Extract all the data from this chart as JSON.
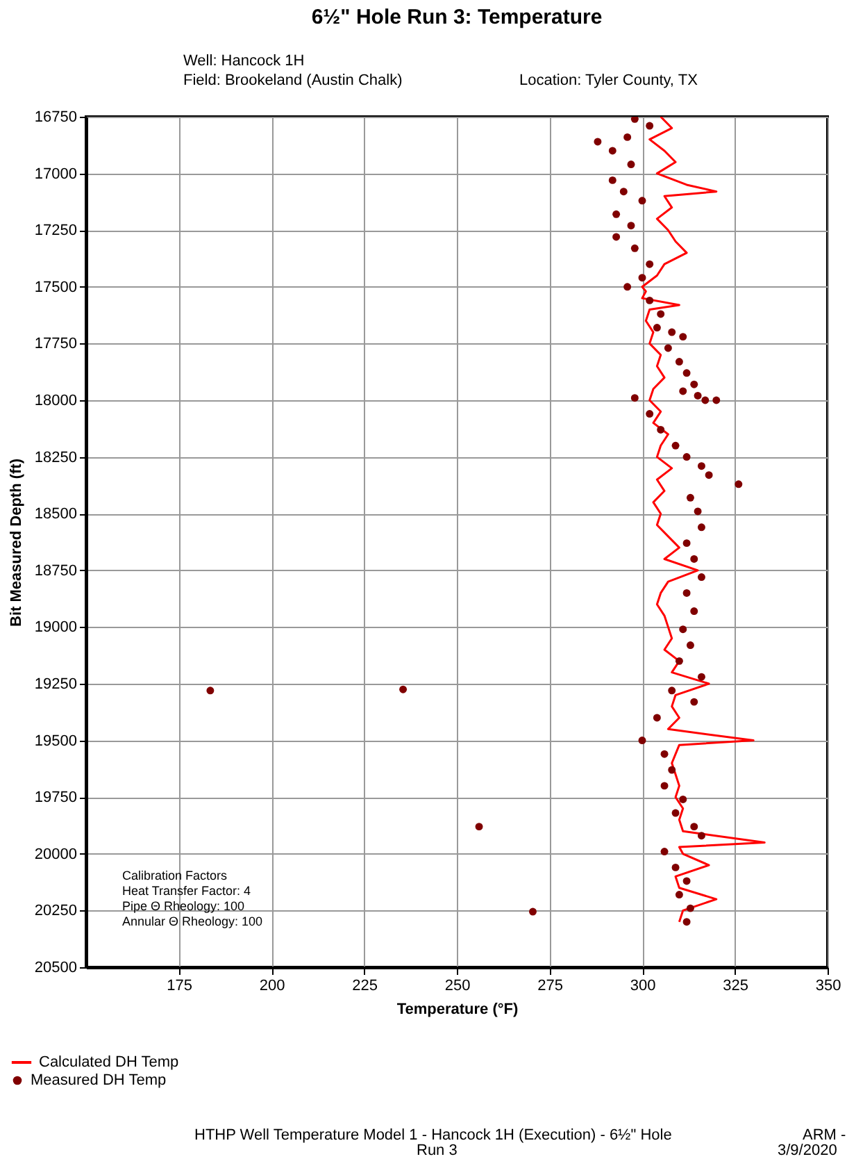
{
  "chart_data": {
    "type": "line",
    "title": "6½\" Hole Run 3: Temperature",
    "xlabel": "Temperature (°F)",
    "ylabel": "Bit Measured Depth (ft)",
    "xlim": [
      150,
      350
    ],
    "xticks": [
      175,
      200,
      225,
      250,
      275,
      300,
      325,
      350
    ],
    "ylim": [
      20500,
      16750
    ],
    "yticks": [
      16750,
      17000,
      17250,
      17500,
      17750,
      18000,
      18250,
      18500,
      18750,
      19000,
      19250,
      19500,
      19750,
      20000,
      20250,
      20500
    ],
    "grid": true,
    "legend": "bottom left",
    "annotations": [
      "Well:   Hancock 1H",
      "Field:  Brookeland (Austin Chalk)",
      "Location:   Tyler County, TX",
      "Calibration Factors",
      "Heat Transfer Factor: 4",
      "Pipe Θ Rheology: 100",
      "Annular Θ Rheology: 100",
      "HTHP Well Temperature Model 1 - Hancock 1H (Execution) - 6½\" Hole",
      "Run 3",
      "ARM -",
      "3/9/2020"
    ],
    "series": [
      {
        "name": "Calculated DH Temp",
        "color": "#ff0000",
        "x": [
          305,
          308,
          302,
          306,
          309,
          304,
          312,
          320,
          306,
          308,
          304,
          307,
          309,
          312,
          306,
          304,
          300,
          301,
          300,
          310,
          302,
          301,
          303,
          302,
          305,
          304,
          306,
          303,
          302,
          305,
          303,
          307,
          305,
          304,
          308,
          304,
          306,
          303,
          305,
          304,
          307,
          310,
          306,
          315,
          307,
          305,
          304,
          306,
          307,
          308,
          306,
          310,
          308,
          318,
          309,
          308,
          310,
          307,
          330,
          310,
          308,
          309,
          310,
          309,
          311,
          310,
          311,
          333,
          310,
          311,
          318,
          309,
          310,
          320,
          311,
          310
        ],
        "values": [
          16750,
          16800,
          16850,
          16900,
          16950,
          17000,
          17050,
          17080,
          17100,
          17150,
          17200,
          17250,
          17300,
          17350,
          17400,
          17450,
          17500,
          17520,
          17550,
          17580,
          17600,
          17650,
          17700,
          17750,
          17800,
          17850,
          17900,
          17950,
          18000,
          18050,
          18100,
          18150,
          18200,
          18250,
          18300,
          18350,
          18400,
          18450,
          18500,
          18550,
          18600,
          18650,
          18700,
          18750,
          18800,
          18850,
          18900,
          18950,
          19000,
          19050,
          19100,
          19150,
          19200,
          19250,
          19300,
          19350,
          19400,
          19450,
          19500,
          19520,
          19600,
          19650,
          19700,
          19750,
          19800,
          19850,
          19900,
          19950,
          19970,
          20000,
          20050,
          20100,
          20150,
          20200,
          20250,
          20300
        ]
      },
      {
        "name": "Measured DH Temp",
        "type": "scatter",
        "marker": "circle",
        "color": "#800000",
        "x": [
          298,
          302,
          296,
          288,
          292,
          297,
          292,
          295,
          300,
          293,
          297,
          293,
          298,
          302,
          300,
          296,
          302,
          305,
          304,
          308,
          311,
          307,
          310,
          312,
          314,
          311,
          315,
          317,
          298,
          320,
          302,
          305,
          309,
          312,
          316,
          318,
          326,
          313,
          315,
          316,
          312,
          314,
          316,
          312,
          314,
          311,
          313,
          310,
          316,
          308,
          314,
          304,
          300,
          306,
          308,
          306,
          311,
          309,
          314,
          316,
          306,
          309,
          312,
          310,
          313,
          312,
          183.5,
          235.5,
          256,
          270.5
        ],
        "values": [
          16760,
          16790,
          16840,
          16860,
          16900,
          16960,
          17030,
          17080,
          17120,
          17180,
          17230,
          17280,
          17330,
          17400,
          17460,
          17500,
          17560,
          17620,
          17680,
          17700,
          17720,
          17770,
          17830,
          17880,
          17930,
          17960,
          17980,
          18000,
          17990,
          18000,
          18060,
          18130,
          18200,
          18250,
          18290,
          18330,
          18370,
          18430,
          18490,
          18560,
          18630,
          18700,
          18780,
          18850,
          18930,
          19010,
          19080,
          19150,
          19220,
          19280,
          19330,
          19400,
          19500,
          19560,
          19630,
          19700,
          19760,
          19820,
          19880,
          19920,
          19990,
          20060,
          20120,
          20180,
          20240,
          20300,
          19280,
          19275,
          19880,
          20255
        ]
      }
    ]
  }
}
